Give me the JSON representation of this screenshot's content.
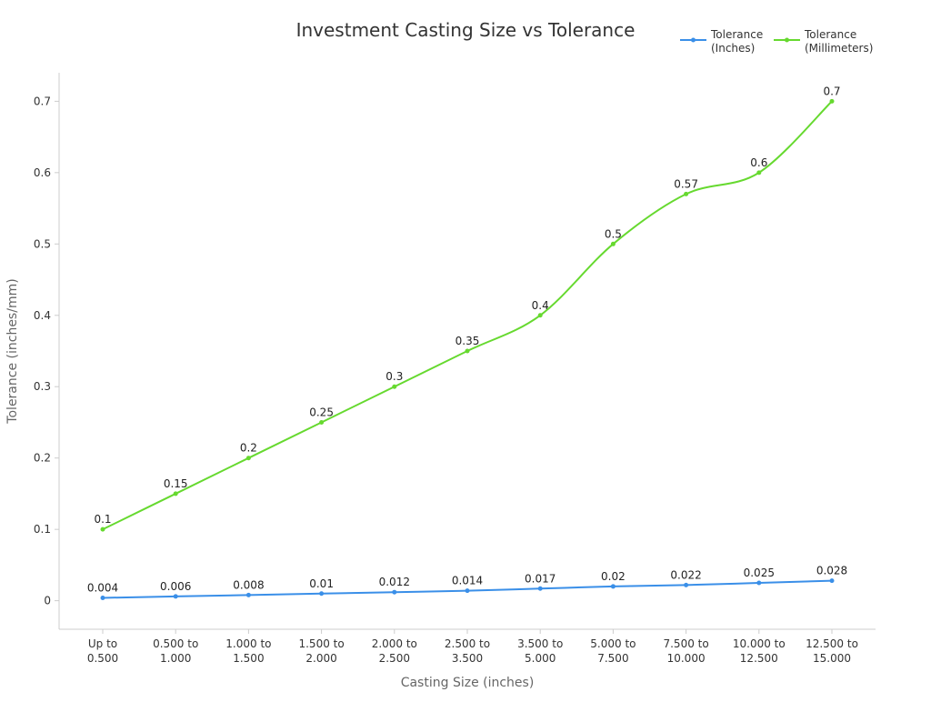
{
  "chart_data": {
    "type": "line",
    "title": "Investment Casting Size vs Tolerance",
    "xlabel": "Casting Size (inches)",
    "ylabel": "Tolerance (inches/mm)",
    "categories": [
      [
        "Up to",
        "0.500"
      ],
      [
        "0.500 to",
        "1.000"
      ],
      [
        "1.000 to",
        "1.500"
      ],
      [
        "1.500 to",
        "2.000"
      ],
      [
        "2.000 to",
        "2.500"
      ],
      [
        "2.500 to",
        "3.500"
      ],
      [
        "3.500 to",
        "5.000"
      ],
      [
        "5.000 to",
        "7.500"
      ],
      [
        "7.500 to",
        "10.000"
      ],
      [
        "10.000 to",
        "12.500"
      ],
      [
        "12.500 to",
        "15.000"
      ]
    ],
    "ylim": [
      -0.04,
      0.74
    ],
    "yticks": [
      0,
      0.1,
      0.2,
      0.3,
      0.4,
      0.5,
      0.6,
      0.7
    ],
    "ytick_labels": [
      "0",
      "0.1",
      "0.2",
      "0.3",
      "0.4",
      "0.5",
      "0.6",
      "0.7"
    ],
    "grid": false,
    "legend_position": "top-right",
    "series": [
      {
        "name": [
          "Tolerance",
          "(Inches)"
        ],
        "color": "#3a8fe8",
        "values": [
          0.004,
          0.006,
          0.008,
          0.01,
          0.012,
          0.014,
          0.017,
          0.02,
          0.022,
          0.025,
          0.028
        ],
        "labels": [
          "0.004",
          "0.006",
          "0.008",
          "0.01",
          "0.012",
          "0.014",
          "0.017",
          "0.02",
          "0.022",
          "0.025",
          "0.028"
        ]
      },
      {
        "name": [
          "Tolerance",
          "(Millimeters)"
        ],
        "color": "#66d92f",
        "values": [
          0.1,
          0.15,
          0.2,
          0.25,
          0.3,
          0.35,
          0.4,
          0.5,
          0.57,
          0.6,
          0.7
        ],
        "labels": [
          "0.1",
          "0.15",
          "0.2",
          "0.25",
          "0.3",
          "0.35",
          "0.4",
          "0.5",
          "0.57",
          "0.6",
          "0.7"
        ]
      }
    ]
  }
}
